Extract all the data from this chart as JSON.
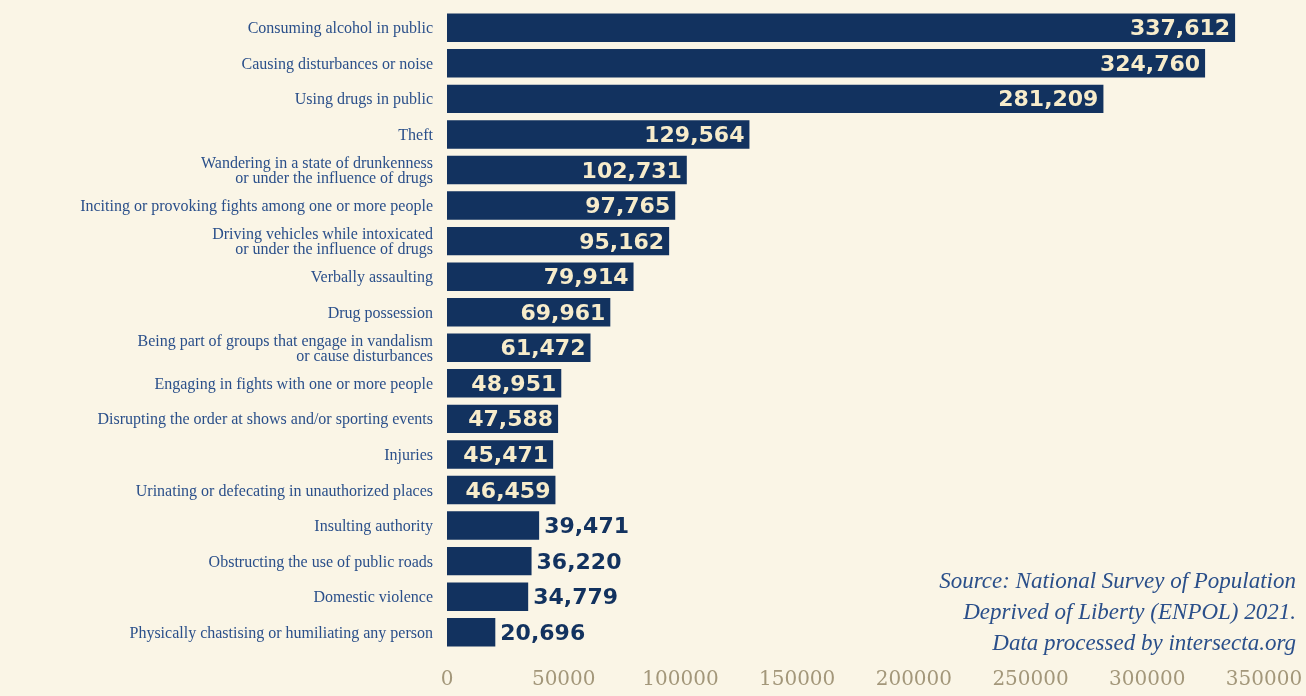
{
  "chart_data": {
    "type": "bar",
    "orientation": "horizontal",
    "categories": [
      "Consuming alcohol in public",
      "Causing disturbances or noise",
      "Using drugs in public",
      "Theft",
      "Wandering in a state of drunkenness\nor under the influence of drugs",
      "Inciting or provoking fights among one or more people",
      "Driving vehicles while intoxicated\nor under the influence of drugs",
      "Verbally assaulting",
      "Drug possession",
      "Being part of groups that engage in vandalism\nor cause disturbances",
      "Engaging in fights with one or more people",
      "Disrupting the order at shows and/or sporting events",
      "Injuries",
      "Urinating or defecating in unauthorized places",
      "Insulting authority",
      "Obstructing the use of public roads",
      "Domestic violence",
      "Physically chastising or humiliating any person"
    ],
    "values": [
      337612,
      324760,
      281209,
      129564,
      102731,
      97765,
      95162,
      79914,
      69961,
      61472,
      48951,
      47588,
      45471,
      46459,
      39471,
      36220,
      34779,
      20696
    ],
    "value_labels": [
      "337,612",
      "324,760",
      "281,209",
      "129,564",
      "102,731",
      "97,765",
      "95,162",
      "79,914",
      "69,961",
      "61,472",
      "48,951",
      "47,588",
      "45,471",
      "46,459",
      "39,471",
      "36,220",
      "34,779",
      "20,696"
    ],
    "color": "#12325f",
    "xlim": [
      0,
      350000
    ],
    "xticks": [
      0,
      50000,
      100000,
      150000,
      200000,
      250000,
      300000,
      350000
    ],
    "annotations": [
      "Source: National Survey of Population\nDeprived of Liberty (ENPOL) 2021.\nData processed by intersecta.org"
    ]
  }
}
